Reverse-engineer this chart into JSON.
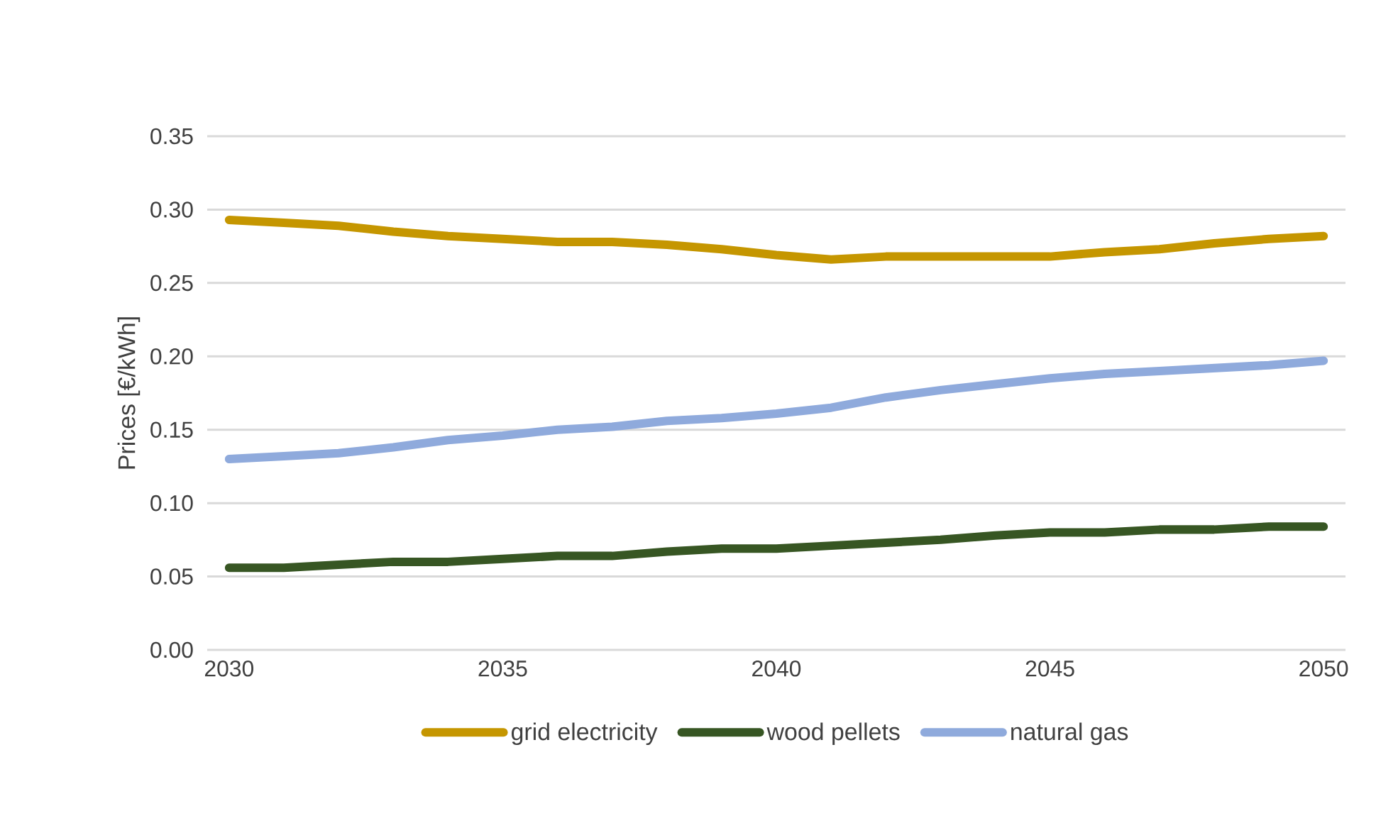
{
  "chart_data": {
    "type": "line",
    "ylabel": "Prices [€/kWh]",
    "x": [
      2030,
      2031,
      2032,
      2033,
      2034,
      2035,
      2036,
      2037,
      2038,
      2039,
      2040,
      2041,
      2042,
      2043,
      2044,
      2045,
      2046,
      2047,
      2048,
      2049,
      2050
    ],
    "series": [
      {
        "name": "grid electricity",
        "color": "#c59600",
        "values": [
          0.293,
          0.291,
          0.289,
          0.285,
          0.282,
          0.28,
          0.278,
          0.278,
          0.276,
          0.273,
          0.269,
          0.266,
          0.268,
          0.268,
          0.268,
          0.268,
          0.271,
          0.273,
          0.277,
          0.28,
          0.282
        ]
      },
      {
        "name": "wood pellets",
        "color": "#375623",
        "values": [
          0.056,
          0.056,
          0.058,
          0.06,
          0.06,
          0.062,
          0.064,
          0.064,
          0.067,
          0.069,
          0.069,
          0.071,
          0.073,
          0.075,
          0.078,
          0.08,
          0.08,
          0.082,
          0.082,
          0.084,
          0.084
        ]
      },
      {
        "name": "natural gas",
        "color": "#8faadc",
        "values": [
          0.13,
          0.132,
          0.134,
          0.138,
          0.143,
          0.146,
          0.15,
          0.152,
          0.156,
          0.158,
          0.161,
          0.165,
          0.172,
          0.177,
          0.181,
          0.185,
          0.188,
          0.19,
          0.192,
          0.194,
          0.197
        ]
      }
    ],
    "xlim": [
      2029.6,
      2050.4
    ],
    "xticks": [
      2030,
      2035,
      2040,
      2045,
      2050
    ],
    "ylim": [
      0,
      0.35
    ],
    "yticks": [
      {
        "value": 0,
        "label": "0.00"
      },
      {
        "value": 0.05,
        "label": "0.05"
      },
      {
        "value": 0.1,
        "label": "0.10"
      },
      {
        "value": 0.15,
        "label": "0.15"
      },
      {
        "value": 0.2,
        "label": "0.20"
      },
      {
        "value": 0.25,
        "label": "0.25"
      },
      {
        "value": 0.3,
        "label": "0.30"
      },
      {
        "value": 0.35,
        "label": "0.35"
      }
    ],
    "grid": "y",
    "legend": "bottom",
    "line_style": "solid"
  }
}
